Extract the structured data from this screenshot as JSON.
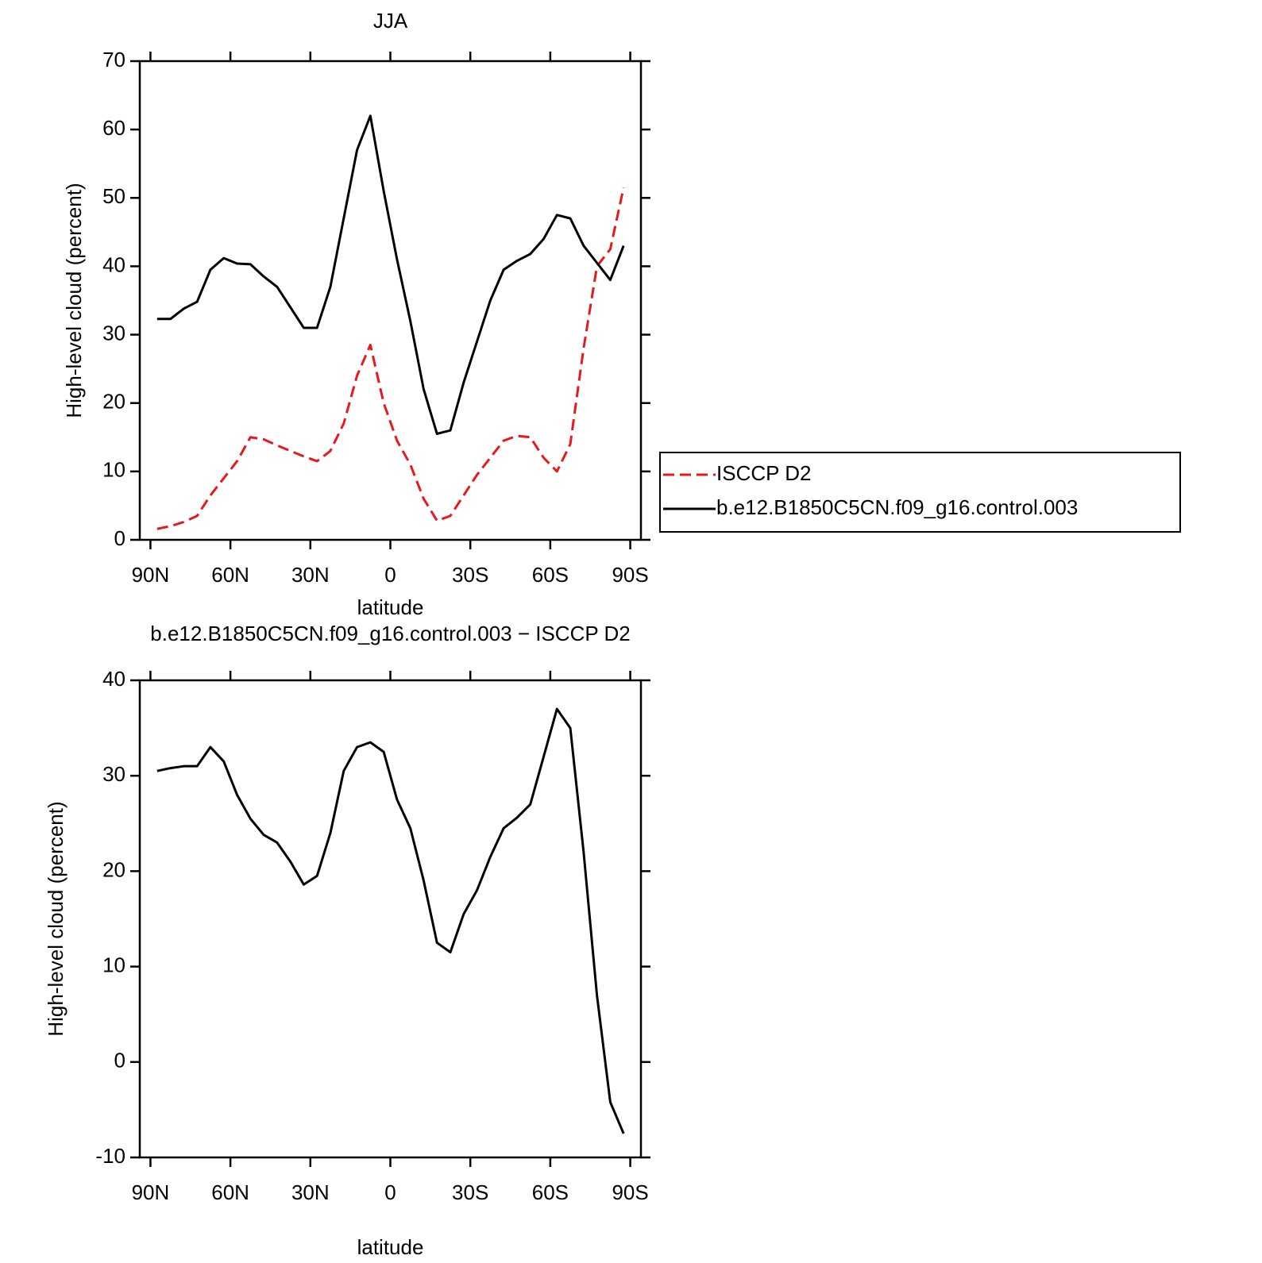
{
  "chart_data": [
    {
      "type": "line",
      "title": "JJA",
      "xlabel": "latitude",
      "ylabel": "High-level cloud (percent)",
      "x": [
        87.5,
        82.5,
        77.5,
        72.5,
        67.5,
        62.5,
        57.5,
        52.5,
        47.5,
        42.5,
        37.5,
        32.5,
        27.5,
        22.5,
        17.5,
        12.5,
        7.5,
        2.5,
        -2.5,
        -7.5,
        -12.5,
        -17.5,
        -22.5,
        -27.5,
        -32.5,
        -37.5,
        -42.5,
        -47.5,
        -52.5,
        -57.5,
        -62.5,
        -67.5,
        -72.5,
        -77.5,
        -82.5,
        -87.5
      ],
      "series": [
        {
          "name": "ISCCP D2",
          "color": "#e8191d",
          "dashed": true,
          "values": [
            1.6,
            2.0,
            2.6,
            3.5,
            6.5,
            9.0,
            11.5,
            15.0,
            14.7,
            13.8,
            13.0,
            12.2,
            11.5,
            13.0,
            17.0,
            24.0,
            28.5,
            20.0,
            14.5,
            11.0,
            6.0,
            2.8,
            3.5,
            6.5,
            9.5,
            12.0,
            14.5,
            15.2,
            15.0,
            12.0,
            10.0,
            14.0,
            28.0,
            40.0,
            42.5,
            51.5
          ]
        },
        {
          "name": "b.e12.B1850C5CN.f09_g16.control.003",
          "color": "#000000",
          "dashed": false,
          "values": [
            32.3,
            32.3,
            33.8,
            34.8,
            39.5,
            41.2,
            40.4,
            40.3,
            38.5,
            37.0,
            34.0,
            31.0,
            31.0,
            37.0,
            47.0,
            57.0,
            62.0,
            51.0,
            41.0,
            32.0,
            22.0,
            15.5,
            16.0,
            23.0,
            29.0,
            35.0,
            39.5,
            40.8,
            41.8,
            44.0,
            47.5,
            47.0,
            43.0,
            40.5,
            38.0,
            43.0
          ]
        }
      ],
      "xlim": [
        94,
        -94
      ],
      "xticks": [
        {
          "value": 90,
          "label": "90N"
        },
        {
          "value": 60,
          "label": "60N"
        },
        {
          "value": 30,
          "label": "30N"
        },
        0,
        {
          "value": -30,
          "label": "30S"
        },
        {
          "value": -60,
          "label": "60S"
        },
        {
          "value": -90,
          "label": "90S"
        }
      ],
      "ylim": [
        0,
        70
      ],
      "yticks": [
        0,
        10,
        20,
        30,
        40,
        50,
        60,
        70
      ],
      "legend": "right"
    },
    {
      "type": "line",
      "title": "b.e12.B1850C5CN.f09_g16.control.003 − ISCCP D2",
      "xlabel": "latitude",
      "ylabel": "High-level cloud (percent)",
      "x": [
        87.5,
        82.5,
        77.5,
        72.5,
        67.5,
        62.5,
        57.5,
        52.5,
        47.5,
        42.5,
        37.5,
        32.5,
        27.5,
        22.5,
        17.5,
        12.5,
        7.5,
        2.5,
        -2.5,
        -7.5,
        -12.5,
        -17.5,
        -22.5,
        -27.5,
        -32.5,
        -37.5,
        -42.5,
        -47.5,
        -52.5,
        -57.5,
        -62.5,
        -67.5,
        -72.5,
        -77.5,
        -82.5,
        -87.5
      ],
      "series": [
        {
          "color": "#000000",
          "dashed": false,
          "values": [
            30.5,
            30.8,
            31.0,
            31.0,
            33.0,
            31.5,
            28.0,
            25.5,
            23.8,
            23.0,
            21.0,
            18.6,
            19.5,
            24.0,
            30.5,
            33.0,
            33.5,
            32.5,
            27.5,
            24.5,
            19.0,
            12.5,
            11.5,
            15.5,
            18.0,
            21.5,
            24.5,
            25.6,
            27.0,
            32.0,
            37.0,
            35.0,
            22.0,
            7.0,
            -4.2,
            -7.5
          ]
        }
      ],
      "xlim": [
        94,
        -94
      ],
      "xticks": [
        {
          "value": 90,
          "label": "90N"
        },
        {
          "value": 60,
          "label": "60N"
        },
        {
          "value": 30,
          "label": "30N"
        },
        0,
        {
          "value": -30,
          "label": "30S"
        },
        {
          "value": -60,
          "label": "60S"
        },
        {
          "value": -90,
          "label": "90S"
        }
      ],
      "ylim": [
        -10,
        40
      ],
      "yticks": [
        -10,
        0,
        10,
        20,
        30,
        40
      ]
    }
  ]
}
